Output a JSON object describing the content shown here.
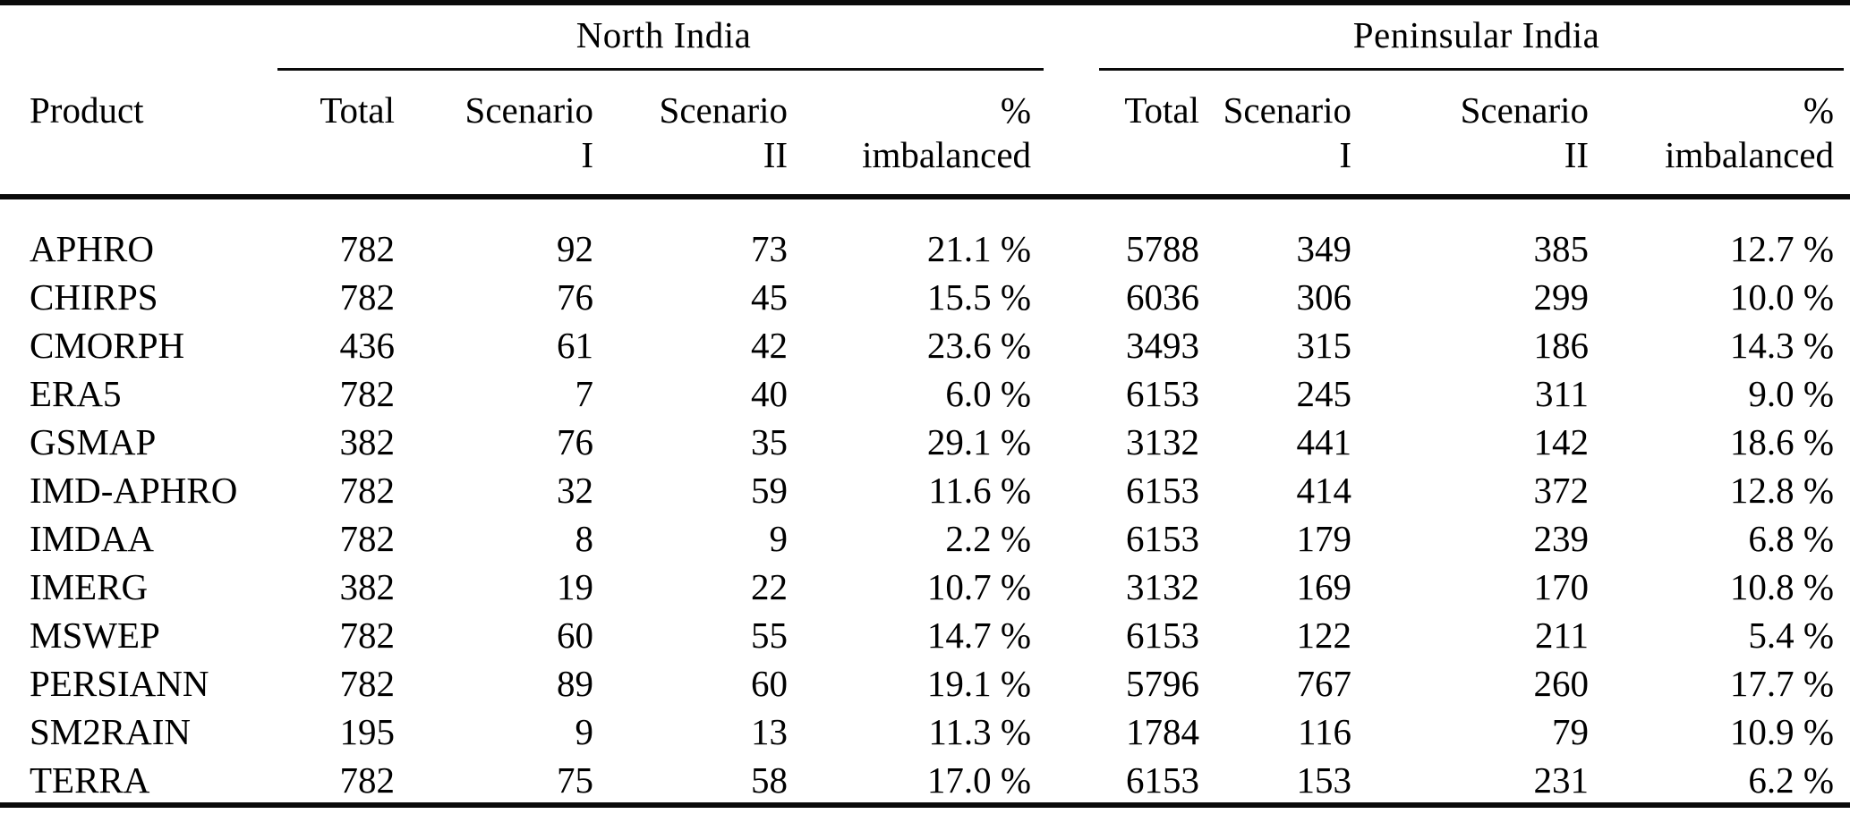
{
  "table": {
    "groups": [
      {
        "label": "North India"
      },
      {
        "label": "Peninsular India"
      }
    ],
    "columns": {
      "product": "Product",
      "total": "Total",
      "scenario": "Scenario",
      "scenario_i": "I",
      "scenario_ii": "II",
      "percent": "%",
      "imbalanced": "imbalanced"
    },
    "rows": [
      {
        "product": "APHRO",
        "north": {
          "total": "782",
          "scenario_i": "92",
          "scenario_ii": "73",
          "pct_imbalanced": "21.1 %"
        },
        "peninsular": {
          "total": "5788",
          "scenario_i": "349",
          "scenario_ii": "385",
          "pct_imbalanced": "12.7 %"
        }
      },
      {
        "product": "CHIRPS",
        "north": {
          "total": "782",
          "scenario_i": "76",
          "scenario_ii": "45",
          "pct_imbalanced": "15.5 %"
        },
        "peninsular": {
          "total": "6036",
          "scenario_i": "306",
          "scenario_ii": "299",
          "pct_imbalanced": "10.0 %"
        }
      },
      {
        "product": "CMORPH",
        "north": {
          "total": "436",
          "scenario_i": "61",
          "scenario_ii": "42",
          "pct_imbalanced": "23.6 %"
        },
        "peninsular": {
          "total": "3493",
          "scenario_i": "315",
          "scenario_ii": "186",
          "pct_imbalanced": "14.3 %"
        }
      },
      {
        "product": "ERA5",
        "north": {
          "total": "782",
          "scenario_i": "7",
          "scenario_ii": "40",
          "pct_imbalanced": "6.0 %"
        },
        "peninsular": {
          "total": "6153",
          "scenario_i": "245",
          "scenario_ii": "311",
          "pct_imbalanced": "9.0 %"
        }
      },
      {
        "product": "GSMAP",
        "north": {
          "total": "382",
          "scenario_i": "76",
          "scenario_ii": "35",
          "pct_imbalanced": "29.1 %"
        },
        "peninsular": {
          "total": "3132",
          "scenario_i": "441",
          "scenario_ii": "142",
          "pct_imbalanced": "18.6 %"
        }
      },
      {
        "product": "IMD-APHRO",
        "north": {
          "total": "782",
          "scenario_i": "32",
          "scenario_ii": "59",
          "pct_imbalanced": "11.6 %"
        },
        "peninsular": {
          "total": "6153",
          "scenario_i": "414",
          "scenario_ii": "372",
          "pct_imbalanced": "12.8 %"
        }
      },
      {
        "product": "IMDAA",
        "north": {
          "total": "782",
          "scenario_i": "8",
          "scenario_ii": "9",
          "pct_imbalanced": "2.2 %"
        },
        "peninsular": {
          "total": "6153",
          "scenario_i": "179",
          "scenario_ii": "239",
          "pct_imbalanced": "6.8 %"
        }
      },
      {
        "product": "IMERG",
        "north": {
          "total": "382",
          "scenario_i": "19",
          "scenario_ii": "22",
          "pct_imbalanced": "10.7 %"
        },
        "peninsular": {
          "total": "3132",
          "scenario_i": "169",
          "scenario_ii": "170",
          "pct_imbalanced": "10.8 %"
        }
      },
      {
        "product": "MSWEP",
        "north": {
          "total": "782",
          "scenario_i": "60",
          "scenario_ii": "55",
          "pct_imbalanced": "14.7 %"
        },
        "peninsular": {
          "total": "6153",
          "scenario_i": "122",
          "scenario_ii": "211",
          "pct_imbalanced": "5.4 %"
        }
      },
      {
        "product": "PERSIANN",
        "north": {
          "total": "782",
          "scenario_i": "89",
          "scenario_ii": "60",
          "pct_imbalanced": "19.1 %"
        },
        "peninsular": {
          "total": "5796",
          "scenario_i": "767",
          "scenario_ii": "260",
          "pct_imbalanced": "17.7 %"
        }
      },
      {
        "product": "SM2RAIN",
        "north": {
          "total": "195",
          "scenario_i": "9",
          "scenario_ii": "13",
          "pct_imbalanced": "11.3 %"
        },
        "peninsular": {
          "total": "1784",
          "scenario_i": "116",
          "scenario_ii": "79",
          "pct_imbalanced": "10.9 %"
        }
      },
      {
        "product": "TERRA",
        "north": {
          "total": "782",
          "scenario_i": "75",
          "scenario_ii": "58",
          "pct_imbalanced": "17.0 %"
        },
        "peninsular": {
          "total": "6153",
          "scenario_i": "153",
          "scenario_ii": "231",
          "pct_imbalanced": "6.2 %"
        }
      }
    ]
  }
}
